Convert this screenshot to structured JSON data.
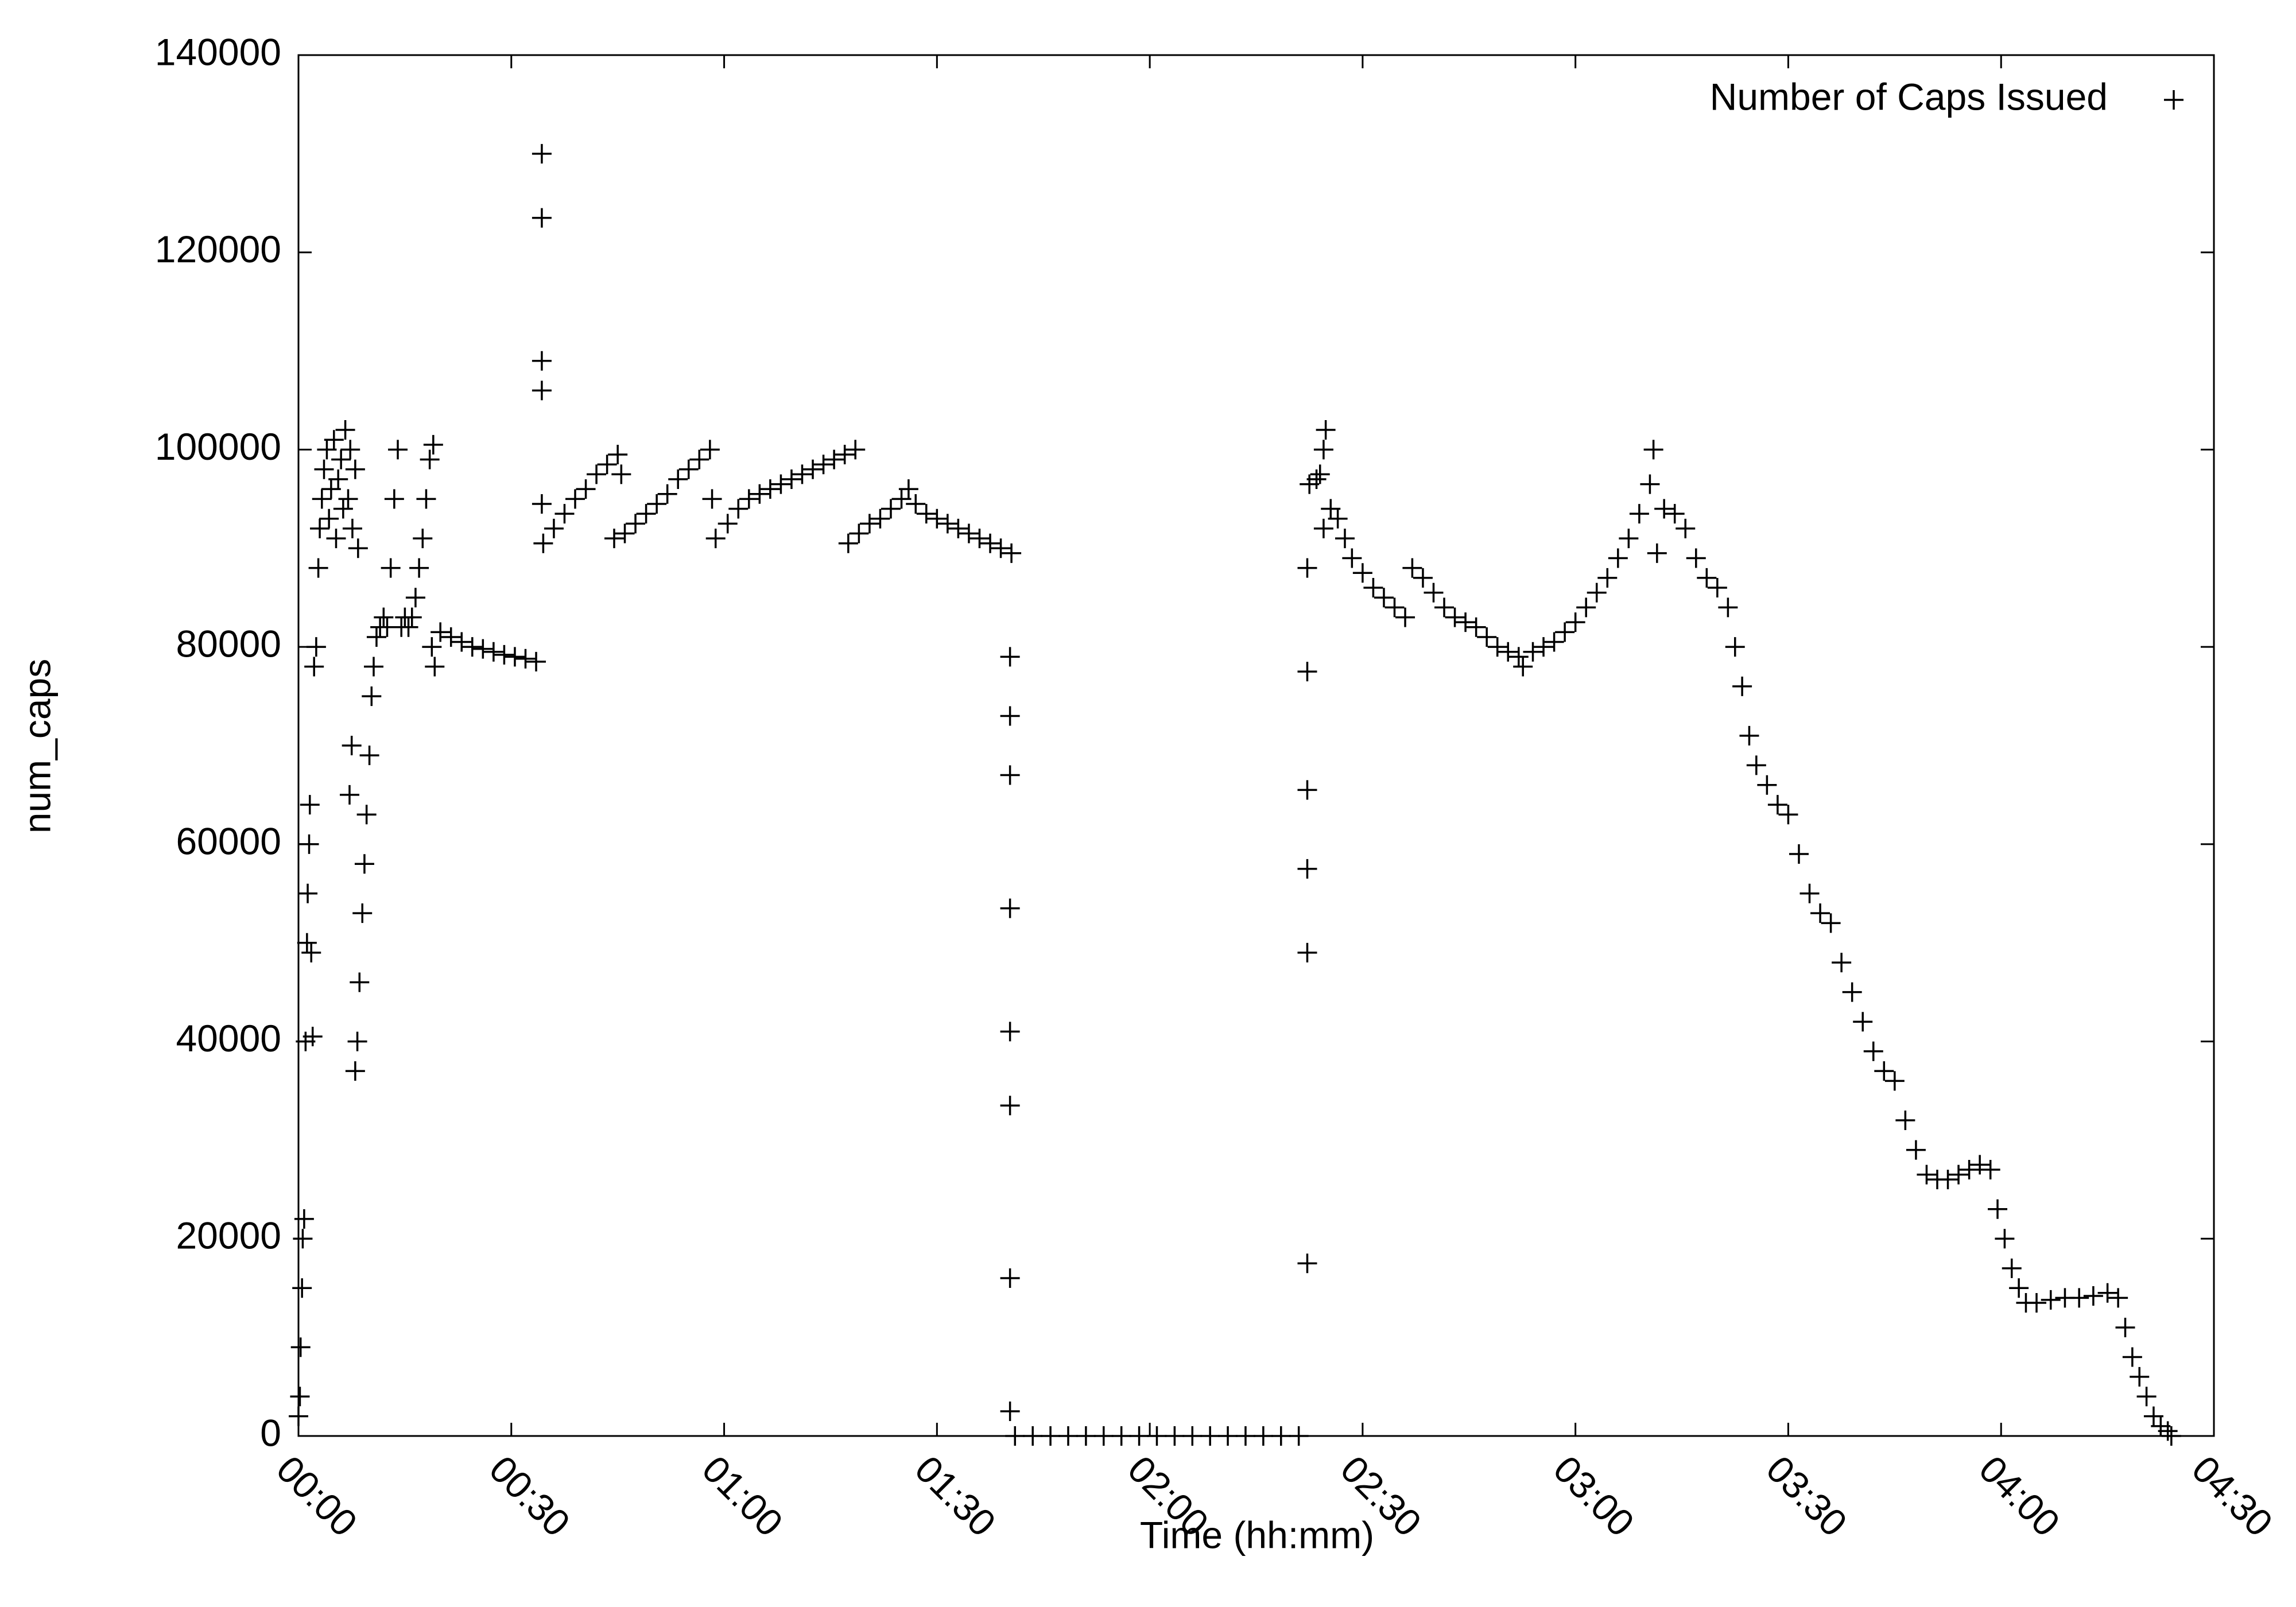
{
  "chart_data": {
    "type": "scatter",
    "xlabel": "Time (hh:mm)",
    "ylabel": "num_caps",
    "xlim": [
      0,
      270
    ],
    "ylim": [
      0,
      140000
    ],
    "xticks": [
      {
        "value": 0,
        "label": "00:00"
      },
      {
        "value": 30,
        "label": "00:30"
      },
      {
        "value": 60,
        "label": "01:00"
      },
      {
        "value": 90,
        "label": "01:30"
      },
      {
        "value": 120,
        "label": "02:00"
      },
      {
        "value": 150,
        "label": "02:30"
      },
      {
        "value": 180,
        "label": "03:00"
      },
      {
        "value": 210,
        "label": "03:30"
      },
      {
        "value": 240,
        "label": "04:00"
      },
      {
        "value": 270,
        "label": "04:30"
      }
    ],
    "yticks": [
      0,
      20000,
      40000,
      60000,
      80000,
      100000,
      120000,
      140000
    ],
    "grid": false,
    "legend": "top-right",
    "x": [
      0,
      0.2,
      0.3,
      0.5,
      0.6,
      0.8,
      1,
      1.2,
      1.3,
      1.5,
      1.6,
      1.8,
      2,
      2.2,
      2.5,
      2.8,
      3,
      3.3,
      3.6,
      4,
      4.3,
      4.6,
      5,
      5.3,
      5.6,
      6,
      6.3,
      6.6,
      7,
      7.3,
      7.6,
      8,
      8.4,
      7.2,
      7.5,
      8,
      8.3,
      8.6,
      9,
      9.3,
      9.6,
      10,
      10.3,
      10.6,
      11,
      11.5,
      12,
      12.5,
      13,
      13.5,
      14,
      14.5,
      15,
      15.5,
      16,
      16.5,
      17,
      17.5,
      18,
      18.5,
      19,
      18.8,
      19.2,
      20,
      21.5,
      23,
      24.5,
      26,
      27.5,
      29,
      30.5,
      32,
      33.5,
      34.3,
      34.3,
      34.3,
      34.3,
      34.3,
      34.5,
      36,
      37.5,
      39,
      40.5,
      42,
      43.5,
      45,
      45.5,
      44.5,
      46,
      47.5,
      49,
      50.5,
      52,
      53.5,
      55,
      56.5,
      58,
      58.3,
      58.8,
      60.5,
      62,
      63.5,
      65,
      66.5,
      68,
      69.5,
      71,
      72.5,
      74,
      75.5,
      77,
      78.5,
      77.5,
      79,
      80.5,
      82,
      83.5,
      85,
      86,
      87,
      88.5,
      90,
      91.5,
      93,
      94.5,
      96,
      97.5,
      99,
      100.5,
      100.3,
      100.3,
      100.3,
      100.3,
      100.3,
      100.3,
      100.3,
      100.3,
      101,
      103.5,
      106,
      108.5,
      111,
      113.5,
      116,
      118.5,
      121,
      123.5,
      126,
      128.5,
      131,
      133.5,
      136,
      138.5,
      141,
      142.2,
      142.2,
      142.2,
      142.2,
      142.2,
      142.2,
      142.5,
      143.5,
      144,
      144.5,
      144.8,
      144.5,
      145.5,
      146.5,
      147.5,
      148.5,
      150,
      151.5,
      153,
      154.5,
      156,
      157,
      158.5,
      160,
      161.5,
      163,
      164.5,
      166,
      167.5,
      169,
      170.5,
      172,
      172.6,
      174,
      175.5,
      177,
      178.5,
      180,
      181.5,
      183,
      184.5,
      186,
      187.5,
      189,
      190.5,
      191,
      191.5,
      192.5,
      194,
      195.5,
      197,
      198.5,
      200,
      201.5,
      202.5,
      203.5,
      204.5,
      205.5,
      207,
      208.5,
      210,
      211.5,
      213,
      214.5,
      216,
      217.5,
      219,
      220.5,
      222,
      223.5,
      225,
      226.5,
      228,
      229.5,
      231,
      232.5,
      234,
      235.5,
      237,
      238.5,
      239.5,
      240.5,
      241.5,
      242.5,
      243.5,
      245,
      247,
      249,
      251,
      253,
      255,
      256.5,
      257.5,
      258.5,
      259.5,
      260.5,
      261.5,
      262.5,
      263.5,
      264
    ],
    "series": [
      {
        "name": "Number of Caps Issued",
        "color": "#000000",
        "marker": "+",
        "values": [
          2000,
          4000,
          9000,
          15000,
          20000,
          22000,
          40000,
          50000,
          55000,
          60000,
          64000,
          49000,
          40500,
          78000,
          80000,
          88000,
          92000,
          95000,
          98000,
          100000,
          93000,
          96000,
          101000,
          91000,
          97000,
          99000,
          94000,
          102000,
          95000,
          100000,
          92000,
          98000,
          90000,
          65000,
          70000,
          37000,
          40000,
          46000,
          53000,
          58000,
          63000,
          69000,
          75000,
          78000,
          81000,
          82000,
          83000,
          82000,
          88000,
          95000,
          100000,
          82000,
          83000,
          82000,
          83000,
          85000,
          88000,
          91000,
          95000,
          99000,
          100500,
          80000,
          78000,
          81500,
          81000,
          80500,
          80000,
          79800,
          79500,
          79200,
          79000,
          78800,
          78500,
          130000,
          123500,
          109000,
          106000,
          94500,
          90500,
          92000,
          93500,
          95000,
          96000,
          97500,
          98500,
          99500,
          97500,
          91000,
          91500,
          92500,
          93500,
          94500,
          95500,
          97000,
          98000,
          99000,
          100000,
          95000,
          91000,
          92500,
          94000,
          95000,
          95500,
          96000,
          96500,
          97000,
          97500,
          98000,
          98500,
          99000,
          99500,
          100000,
          90500,
          91500,
          92500,
          93000,
          94000,
          95000,
          96000,
          94500,
          93500,
          93000,
          92500,
          92000,
          91500,
          91000,
          90500,
          90000,
          89500,
          79000,
          73000,
          67000,
          53500,
          41000,
          33500,
          16000,
          2500,
          0,
          0,
          0,
          0,
          0,
          0,
          0,
          0,
          0,
          0,
          0,
          0,
          0,
          0,
          0,
          0,
          0,
          17500,
          49000,
          57500,
          65500,
          77500,
          88000,
          96500,
          97000,
          97500,
          100000,
          102000,
          92000,
          94000,
          93000,
          91000,
          89000,
          87500,
          86000,
          85000,
          84000,
          83000,
          88000,
          87000,
          85500,
          84000,
          83000,
          82500,
          82000,
          81000,
          80000,
          79500,
          79000,
          78000,
          79500,
          80000,
          80500,
          81500,
          82500,
          84000,
          85500,
          87000,
          89000,
          91000,
          93500,
          96500,
          100000,
          89500,
          94000,
          93500,
          92000,
          89000,
          87000,
          86000,
          84000,
          80000,
          76000,
          71000,
          68000,
          66000,
          64000,
          63000,
          59000,
          55000,
          53000,
          52000,
          48000,
          45000,
          42000,
          39000,
          37000,
          36000,
          32000,
          29000,
          26500,
          26000,
          26000,
          26500,
          27000,
          27500,
          27000,
          23000,
          20000,
          17000,
          15000,
          13500,
          13500,
          13800,
          14000,
          14000,
          14200,
          14500,
          14000,
          11000,
          8000,
          6000,
          4000,
          2000,
          1000,
          500,
          0
        ]
      }
    ]
  }
}
